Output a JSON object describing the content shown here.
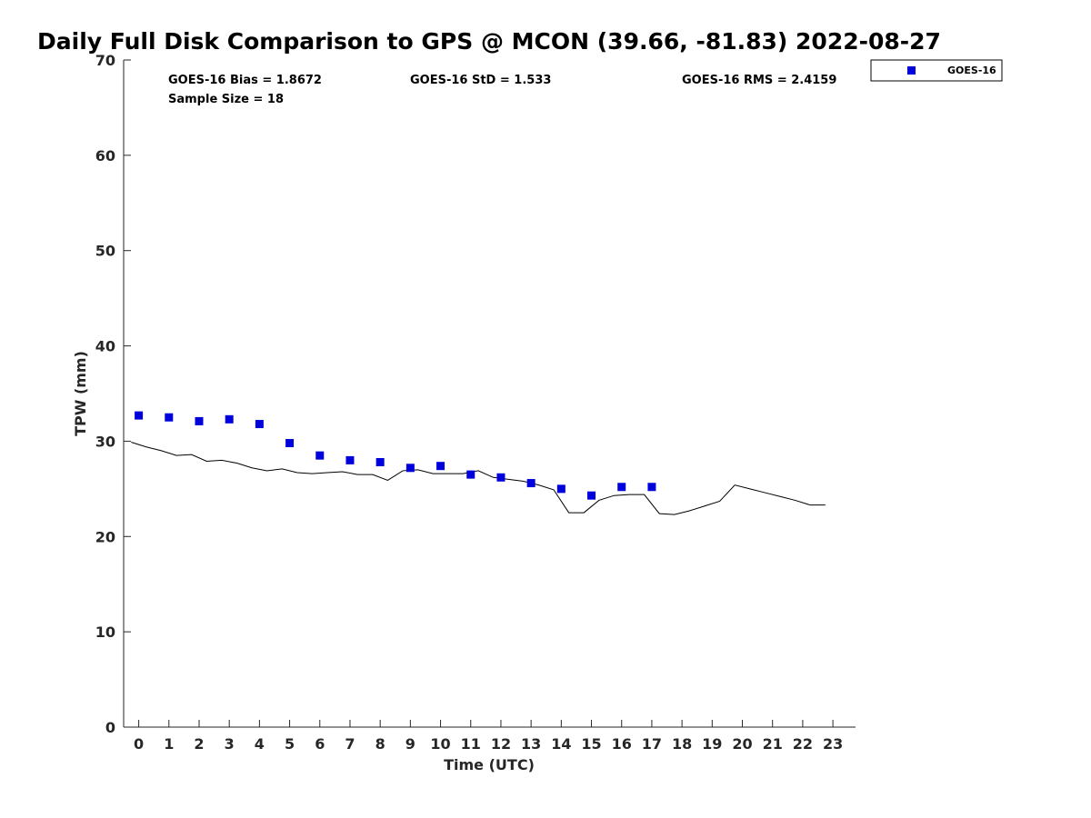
{
  "chart_data": {
    "type": "scatter",
    "title": "Daily Full Disk Comparison to GPS @ MCON (39.66, -81.83) 2022-08-27",
    "xlabel": "Time (UTC)",
    "ylabel": "TPW (mm)",
    "xlim": [
      -0.5,
      23.75
    ],
    "ylim": [
      0,
      70
    ],
    "x_ticks": [
      0,
      1,
      2,
      3,
      4,
      5,
      6,
      7,
      8,
      9,
      10,
      11,
      12,
      13,
      14,
      15,
      16,
      17,
      18,
      19,
      20,
      21,
      22,
      23
    ],
    "y_ticks": [
      0,
      10,
      20,
      30,
      40,
      50,
      60,
      70
    ],
    "grid": false,
    "legend_position": "top-right",
    "stats": {
      "bias": "GOES-16 Bias = 1.8672",
      "std": "GOES-16 StD = 1.533",
      "rms": "GOES-16 RMS = 2.4159",
      "sample": "Sample Size = 18"
    },
    "series": [
      {
        "name": "GOES-16",
        "kind": "scatter",
        "color": "#0000dd",
        "x": [
          0,
          1,
          2,
          3,
          4,
          5,
          6,
          7,
          8,
          9,
          10,
          11,
          12,
          13,
          14,
          15,
          16,
          17
        ],
        "y": [
          32.7,
          32.5,
          32.1,
          32.3,
          31.8,
          29.8,
          28.5,
          28.0,
          27.8,
          27.2,
          27.4,
          26.5,
          26.2,
          25.6,
          25.0,
          24.3,
          25.2,
          25.2
        ]
      },
      {
        "kind": "line",
        "color": "#000000",
        "x": [
          -0.25,
          0.25,
          0.75,
          1.25,
          1.75,
          2.25,
          2.75,
          3.25,
          3.75,
          4.25,
          4.75,
          5.25,
          5.75,
          6.25,
          6.75,
          7.25,
          7.75,
          8.25,
          8.75,
          9.25,
          9.75,
          10.25,
          10.75,
          11.25,
          11.75,
          12.25,
          12.75,
          13.25,
          13.75,
          14.25,
          14.75,
          15.25,
          15.75,
          16.25,
          16.75,
          17.25,
          17.75,
          18.25,
          18.75,
          19.25,
          19.75,
          20.25,
          20.75,
          21.25,
          21.75,
          22.25,
          22.75
        ],
        "y": [
          29.9,
          29.4,
          29.0,
          28.5,
          28.6,
          27.9,
          28.0,
          27.7,
          27.2,
          26.9,
          27.1,
          26.7,
          26.6,
          26.7,
          26.8,
          26.5,
          26.5,
          25.9,
          26.9,
          27.0,
          26.6,
          26.6,
          26.6,
          26.9,
          26.2,
          26.0,
          25.8,
          25.4,
          24.9,
          22.5,
          22.5,
          23.8,
          24.3,
          24.4,
          24.4,
          22.4,
          22.3,
          22.7,
          23.2,
          23.7,
          25.4,
          25.0,
          24.6,
          24.2,
          23.8,
          23.3,
          23.3
        ]
      }
    ]
  }
}
